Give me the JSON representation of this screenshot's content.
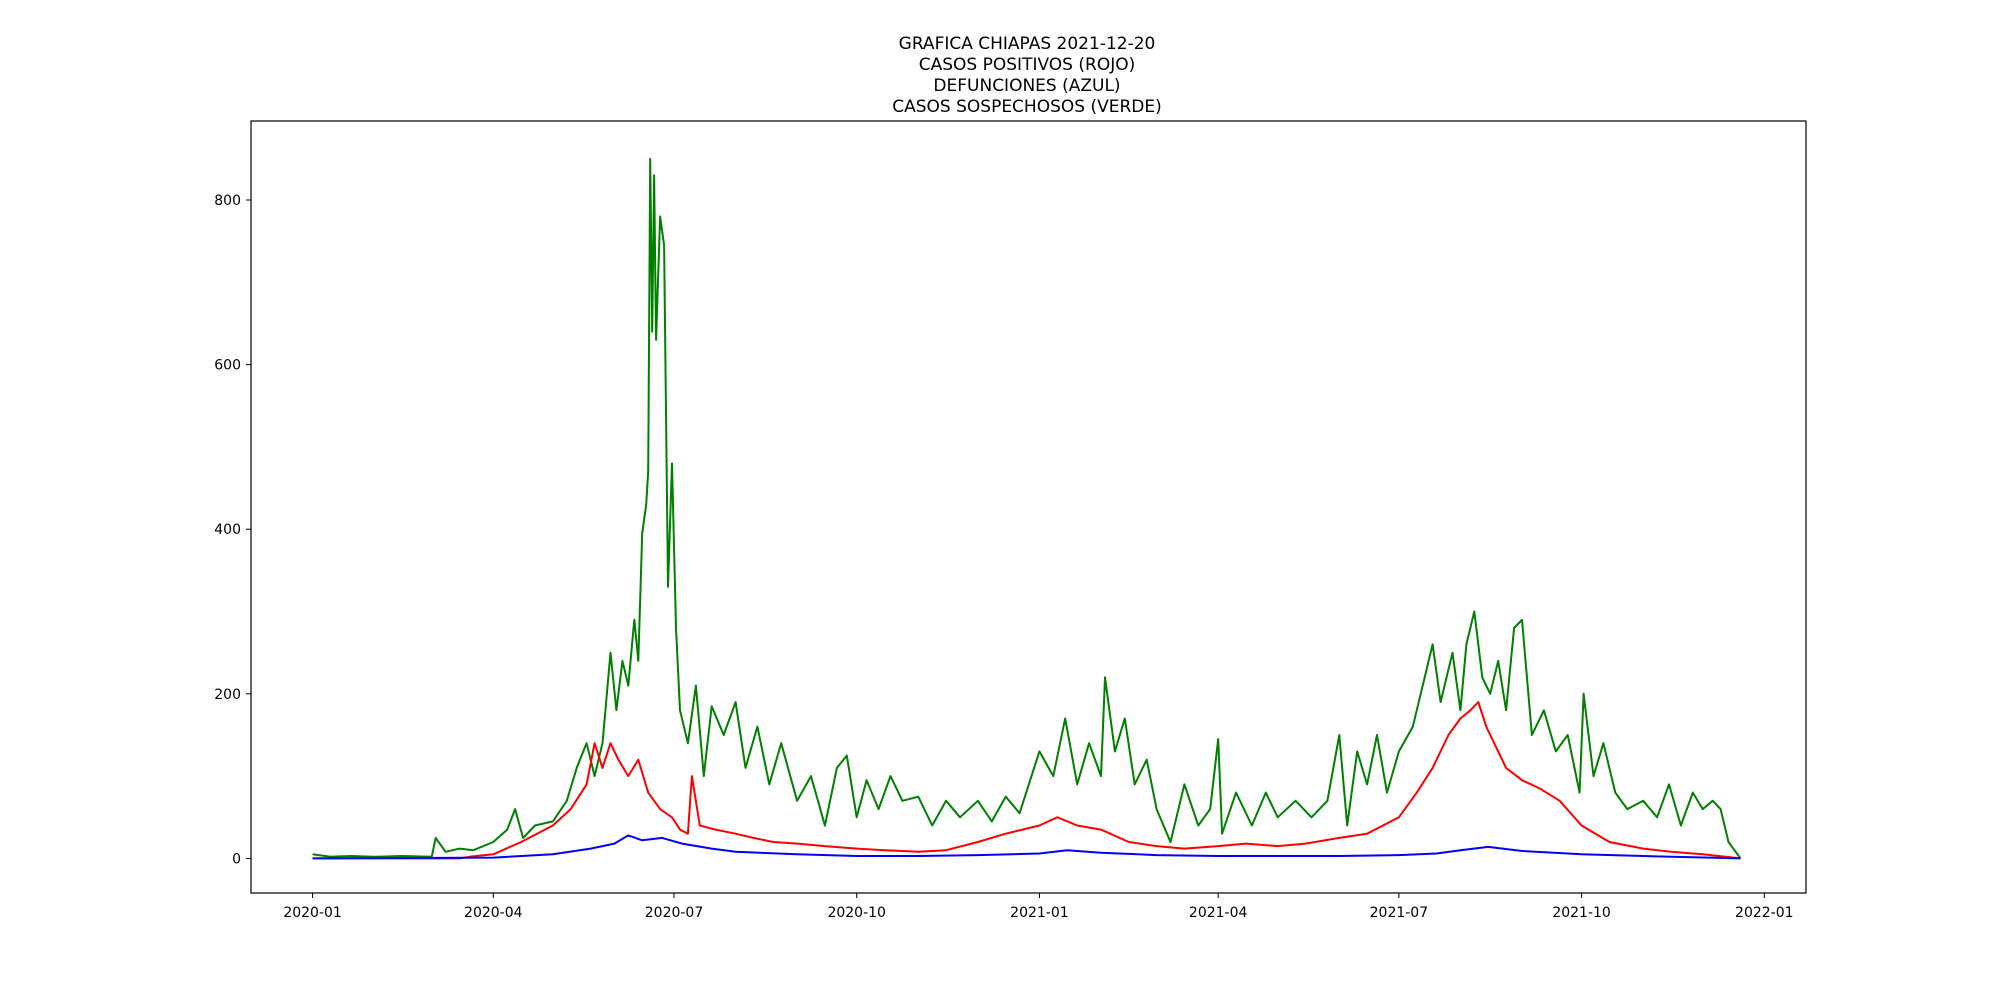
{
  "chart_data": {
    "type": "line",
    "title_lines": [
      "GRAFICA CHIAPAS 2021-12-20",
      "CASOS POSITIVOS (ROJO)",
      "DEFUNCIONES (AZUL)",
      "CASOS SOSPECHOSOS (VERDE)"
    ],
    "xlabel": "",
    "ylabel": "",
    "x_range": [
      "2019-12-01",
      "2022-01-22"
    ],
    "ylim": [
      -42,
      896
    ],
    "x_ticks": [
      "2020-01",
      "2020-04",
      "2020-07",
      "2020-10",
      "2021-01",
      "2021-04",
      "2021-07",
      "2021-10",
      "2022-01"
    ],
    "y_ticks": [
      0,
      200,
      400,
      600,
      800
    ],
    "grid": false,
    "legend": "none",
    "series": [
      {
        "color": "#008000",
        "points": [
          [
            "2020-01-01",
            5
          ],
          [
            "2020-01-10",
            2
          ],
          [
            "2020-01-20",
            3
          ],
          [
            "2020-02-01",
            2
          ],
          [
            "2020-02-15",
            3
          ],
          [
            "2020-03-01",
            2
          ],
          [
            "2020-03-03",
            25
          ],
          [
            "2020-03-08",
            8
          ],
          [
            "2020-03-15",
            12
          ],
          [
            "2020-03-22",
            10
          ],
          [
            "2020-04-01",
            20
          ],
          [
            "2020-04-08",
            35
          ],
          [
            "2020-04-12",
            60
          ],
          [
            "2020-04-16",
            25
          ],
          [
            "2020-04-22",
            40
          ],
          [
            "2020-05-01",
            45
          ],
          [
            "2020-05-08",
            70
          ],
          [
            "2020-05-13",
            110
          ],
          [
            "2020-05-18",
            140
          ],
          [
            "2020-05-22",
            100
          ],
          [
            "2020-05-26",
            140
          ],
          [
            "2020-05-30",
            250
          ],
          [
            "2020-06-02",
            180
          ],
          [
            "2020-06-05",
            240
          ],
          [
            "2020-06-08",
            210
          ],
          [
            "2020-06-11",
            290
          ],
          [
            "2020-06-13",
            240
          ],
          [
            "2020-06-15",
            395
          ],
          [
            "2020-06-17",
            430
          ],
          [
            "2020-06-18",
            470
          ],
          [
            "2020-06-19",
            850
          ],
          [
            "2020-06-20",
            640
          ],
          [
            "2020-06-21",
            830
          ],
          [
            "2020-06-22",
            630
          ],
          [
            "2020-06-24",
            780
          ],
          [
            "2020-06-26",
            745
          ],
          [
            "2020-06-28",
            330
          ],
          [
            "2020-06-30",
            480
          ],
          [
            "2020-07-02",
            280
          ],
          [
            "2020-07-04",
            180
          ],
          [
            "2020-07-08",
            140
          ],
          [
            "2020-07-12",
            210
          ],
          [
            "2020-07-16",
            100
          ],
          [
            "2020-07-20",
            185
          ],
          [
            "2020-07-26",
            150
          ],
          [
            "2020-08-01",
            190
          ],
          [
            "2020-08-06",
            110
          ],
          [
            "2020-08-12",
            160
          ],
          [
            "2020-08-18",
            90
          ],
          [
            "2020-08-24",
            140
          ],
          [
            "2020-09-01",
            70
          ],
          [
            "2020-09-08",
            100
          ],
          [
            "2020-09-15",
            40
          ],
          [
            "2020-09-21",
            110
          ],
          [
            "2020-09-26",
            125
          ],
          [
            "2020-10-01",
            50
          ],
          [
            "2020-10-06",
            95
          ],
          [
            "2020-10-12",
            60
          ],
          [
            "2020-10-18",
            100
          ],
          [
            "2020-10-24",
            70
          ],
          [
            "2020-11-01",
            75
          ],
          [
            "2020-11-08",
            40
          ],
          [
            "2020-11-15",
            70
          ],
          [
            "2020-11-22",
            50
          ],
          [
            "2020-12-01",
            70
          ],
          [
            "2020-12-08",
            45
          ],
          [
            "2020-12-15",
            75
          ],
          [
            "2020-12-22",
            55
          ],
          [
            "2021-01-01",
            130
          ],
          [
            "2021-01-08",
            100
          ],
          [
            "2021-01-14",
            170
          ],
          [
            "2021-01-20",
            90
          ],
          [
            "2021-01-26",
            140
          ],
          [
            "2021-02-01",
            100
          ],
          [
            "2021-02-03",
            220
          ],
          [
            "2021-02-08",
            130
          ],
          [
            "2021-02-13",
            170
          ],
          [
            "2021-02-18",
            90
          ],
          [
            "2021-02-24",
            120
          ],
          [
            "2021-03-01",
            60
          ],
          [
            "2021-03-08",
            20
          ],
          [
            "2021-03-15",
            90
          ],
          [
            "2021-03-22",
            40
          ],
          [
            "2021-03-28",
            60
          ],
          [
            "2021-04-01",
            145
          ],
          [
            "2021-04-03",
            30
          ],
          [
            "2021-04-10",
            80
          ],
          [
            "2021-04-18",
            40
          ],
          [
            "2021-04-25",
            80
          ],
          [
            "2021-05-01",
            50
          ],
          [
            "2021-05-10",
            70
          ],
          [
            "2021-05-18",
            50
          ],
          [
            "2021-05-26",
            70
          ],
          [
            "2021-06-01",
            150
          ],
          [
            "2021-06-05",
            40
          ],
          [
            "2021-06-10",
            130
          ],
          [
            "2021-06-15",
            90
          ],
          [
            "2021-06-20",
            150
          ],
          [
            "2021-06-25",
            80
          ],
          [
            "2021-07-01",
            130
          ],
          [
            "2021-07-08",
            160
          ],
          [
            "2021-07-14",
            220
          ],
          [
            "2021-07-18",
            260
          ],
          [
            "2021-07-22",
            190
          ],
          [
            "2021-07-28",
            250
          ],
          [
            "2021-08-01",
            180
          ],
          [
            "2021-08-04",
            260
          ],
          [
            "2021-08-08",
            300
          ],
          [
            "2021-08-12",
            220
          ],
          [
            "2021-08-16",
            200
          ],
          [
            "2021-08-20",
            240
          ],
          [
            "2021-08-24",
            180
          ],
          [
            "2021-08-28",
            280
          ],
          [
            "2021-09-01",
            290
          ],
          [
            "2021-09-06",
            150
          ],
          [
            "2021-09-12",
            180
          ],
          [
            "2021-09-18",
            130
          ],
          [
            "2021-09-24",
            150
          ],
          [
            "2021-09-30",
            80
          ],
          [
            "2021-10-02",
            200
          ],
          [
            "2021-10-07",
            100
          ],
          [
            "2021-10-12",
            140
          ],
          [
            "2021-10-18",
            80
          ],
          [
            "2021-10-24",
            60
          ],
          [
            "2021-11-01",
            70
          ],
          [
            "2021-11-08",
            50
          ],
          [
            "2021-11-14",
            90
          ],
          [
            "2021-11-20",
            40
          ],
          [
            "2021-11-26",
            80
          ],
          [
            "2021-12-01",
            60
          ],
          [
            "2021-12-06",
            70
          ],
          [
            "2021-12-10",
            60
          ],
          [
            "2021-12-14",
            20
          ],
          [
            "2021-12-17",
            10
          ],
          [
            "2021-12-20",
            0
          ]
        ]
      },
      {
        "color": "#ff0000",
        "points": [
          [
            "2020-01-01",
            0
          ],
          [
            "2020-03-15",
            0
          ],
          [
            "2020-03-20",
            2
          ],
          [
            "2020-04-01",
            5
          ],
          [
            "2020-04-15",
            20
          ],
          [
            "2020-05-01",
            40
          ],
          [
            "2020-05-10",
            60
          ],
          [
            "2020-05-18",
            90
          ],
          [
            "2020-05-22",
            140
          ],
          [
            "2020-05-26",
            110
          ],
          [
            "2020-05-30",
            140
          ],
          [
            "2020-06-03",
            120
          ],
          [
            "2020-06-08",
            100
          ],
          [
            "2020-06-13",
            120
          ],
          [
            "2020-06-18",
            80
          ],
          [
            "2020-06-24",
            60
          ],
          [
            "2020-06-30",
            50
          ],
          [
            "2020-07-04",
            35
          ],
          [
            "2020-07-08",
            30
          ],
          [
            "2020-07-10",
            100
          ],
          [
            "2020-07-14",
            40
          ],
          [
            "2020-07-22",
            35
          ],
          [
            "2020-08-01",
            30
          ],
          [
            "2020-08-10",
            25
          ],
          [
            "2020-08-20",
            20
          ],
          [
            "2020-09-01",
            18
          ],
          [
            "2020-09-15",
            15
          ],
          [
            "2020-10-01",
            12
          ],
          [
            "2020-10-15",
            10
          ],
          [
            "2020-11-01",
            8
          ],
          [
            "2020-11-15",
            10
          ],
          [
            "2020-12-01",
            20
          ],
          [
            "2020-12-15",
            30
          ],
          [
            "2021-01-01",
            40
          ],
          [
            "2021-01-10",
            50
          ],
          [
            "2021-01-20",
            40
          ],
          [
            "2021-02-01",
            35
          ],
          [
            "2021-02-15",
            20
          ],
          [
            "2021-03-01",
            15
          ],
          [
            "2021-03-15",
            12
          ],
          [
            "2021-04-01",
            15
          ],
          [
            "2021-04-15",
            18
          ],
          [
            "2021-05-01",
            15
          ],
          [
            "2021-05-15",
            18
          ],
          [
            "2021-06-01",
            25
          ],
          [
            "2021-06-15",
            30
          ],
          [
            "2021-07-01",
            50
          ],
          [
            "2021-07-10",
            80
          ],
          [
            "2021-07-18",
            110
          ],
          [
            "2021-07-26",
            150
          ],
          [
            "2021-08-01",
            170
          ],
          [
            "2021-08-06",
            180
          ],
          [
            "2021-08-10",
            190
          ],
          [
            "2021-08-14",
            160
          ],
          [
            "2021-08-18",
            140
          ],
          [
            "2021-08-24",
            110
          ],
          [
            "2021-09-01",
            95
          ],
          [
            "2021-09-10",
            85
          ],
          [
            "2021-09-20",
            70
          ],
          [
            "2021-10-01",
            40
          ],
          [
            "2021-10-15",
            20
          ],
          [
            "2021-11-01",
            12
          ],
          [
            "2021-11-15",
            8
          ],
          [
            "2021-12-01",
            5
          ],
          [
            "2021-12-20",
            0
          ]
        ]
      },
      {
        "color": "#0000ff",
        "points": [
          [
            "2020-01-01",
            0
          ],
          [
            "2020-04-01",
            1
          ],
          [
            "2020-05-01",
            5
          ],
          [
            "2020-05-20",
            12
          ],
          [
            "2020-06-01",
            18
          ],
          [
            "2020-06-08",
            28
          ],
          [
            "2020-06-15",
            22
          ],
          [
            "2020-06-25",
            25
          ],
          [
            "2020-07-05",
            18
          ],
          [
            "2020-07-20",
            12
          ],
          [
            "2020-08-01",
            8
          ],
          [
            "2020-09-01",
            5
          ],
          [
            "2020-10-01",
            3
          ],
          [
            "2020-11-01",
            3
          ],
          [
            "2020-12-01",
            4
          ],
          [
            "2021-01-01",
            6
          ],
          [
            "2021-01-15",
            10
          ],
          [
            "2021-02-01",
            7
          ],
          [
            "2021-03-01",
            4
          ],
          [
            "2021-04-01",
            3
          ],
          [
            "2021-05-01",
            3
          ],
          [
            "2021-06-01",
            3
          ],
          [
            "2021-07-01",
            4
          ],
          [
            "2021-07-20",
            6
          ],
          [
            "2021-08-01",
            10
          ],
          [
            "2021-08-15",
            14
          ],
          [
            "2021-09-01",
            9
          ],
          [
            "2021-10-01",
            5
          ],
          [
            "2021-11-01",
            3
          ],
          [
            "2021-12-20",
            0
          ]
        ]
      }
    ]
  }
}
